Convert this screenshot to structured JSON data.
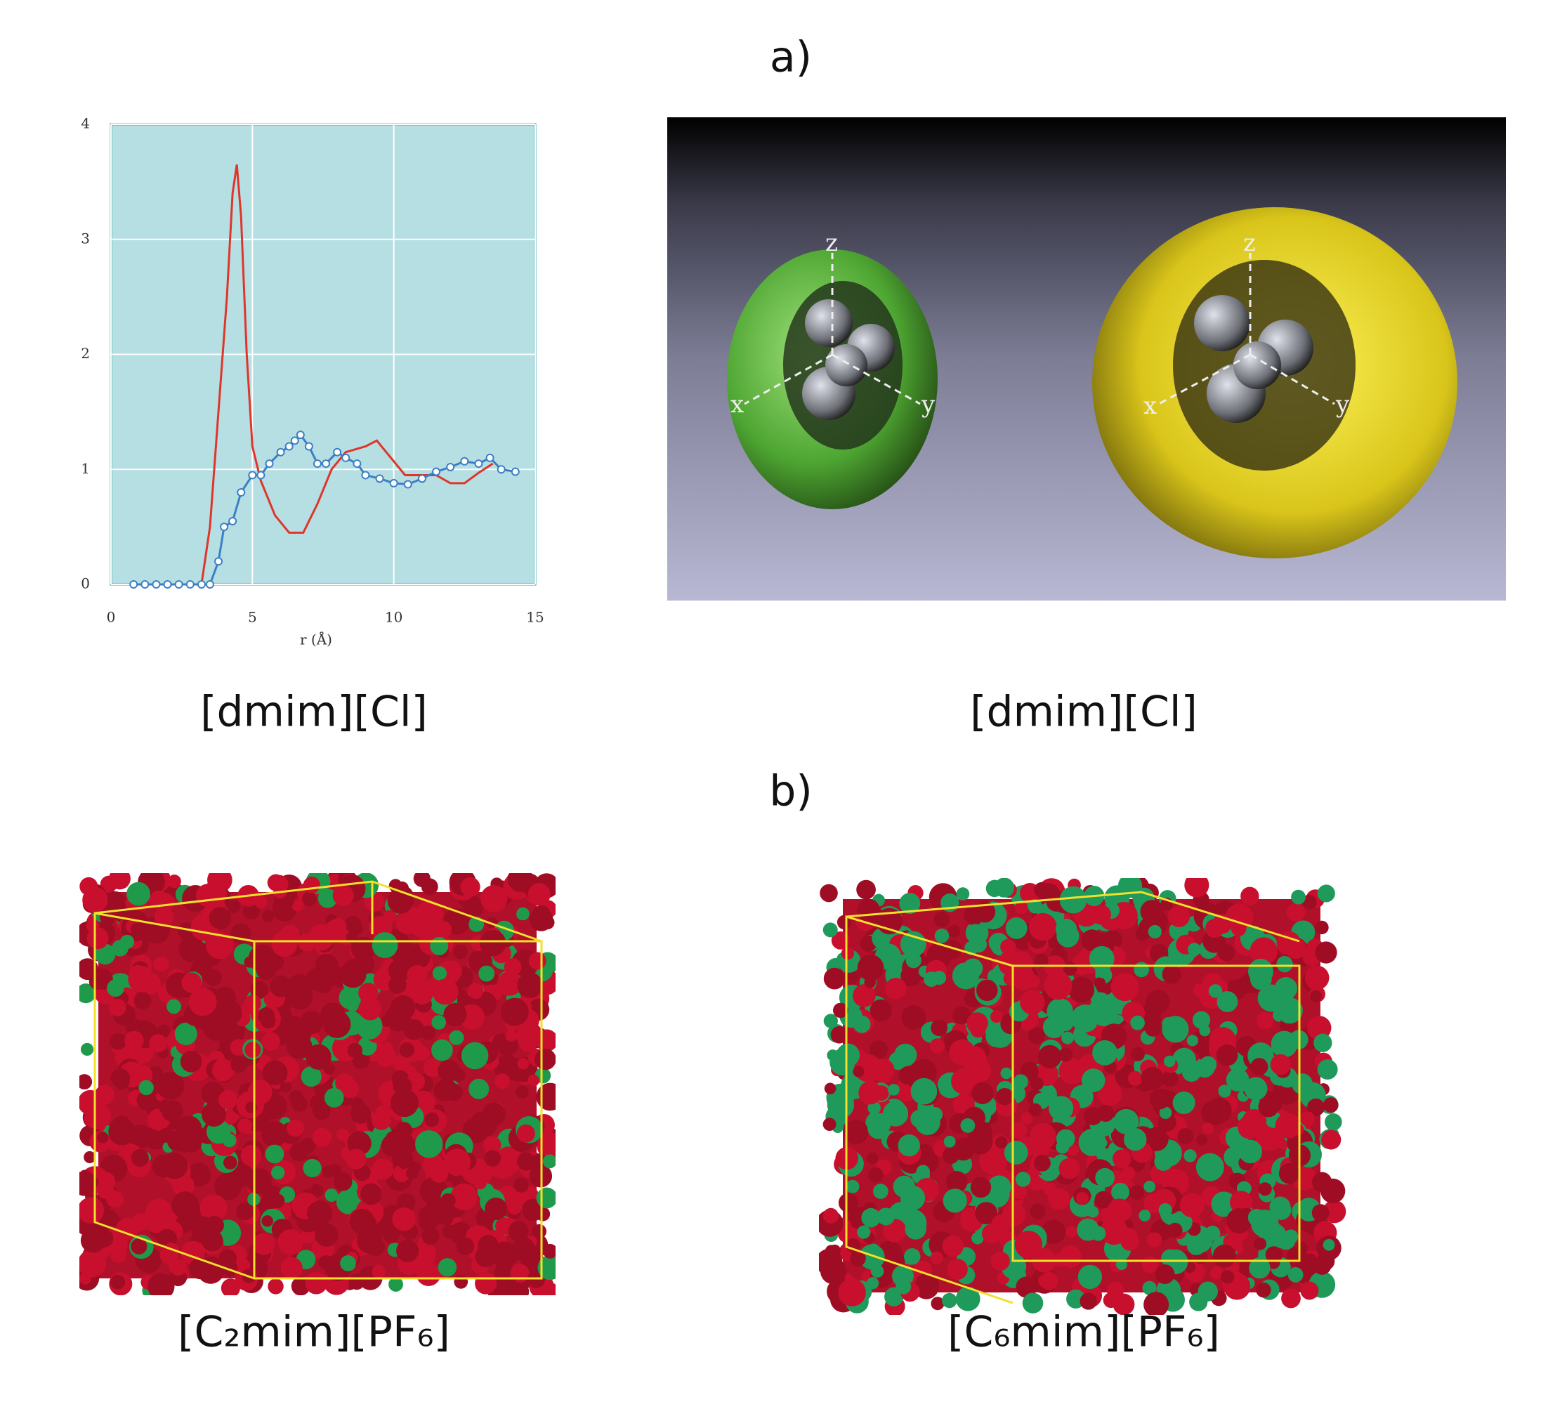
{
  "chart_data": {
    "type": "line",
    "xlabel": "r (Å)",
    "xlim": [
      0,
      15
    ],
    "ylim": [
      0,
      4
    ],
    "xticks": [
      0,
      5,
      10,
      15
    ],
    "yticks": [
      0,
      1,
      2,
      3,
      4
    ],
    "grid": true,
    "series": [
      {
        "color": "#e0352b",
        "marker": "none",
        "x": [
          3.2,
          3.5,
          3.8,
          4.1,
          4.3,
          4.45,
          4.6,
          4.8,
          5.0,
          5.3,
          5.8,
          6.3,
          6.8,
          7.3,
          7.8,
          8.3,
          9.0,
          9.4,
          9.9,
          10.4,
          11.0,
          11.5,
          12.0,
          12.5,
          13.0,
          13.5
        ],
        "values": [
          0,
          0.5,
          1.5,
          2.5,
          3.4,
          3.65,
          3.2,
          2.0,
          1.2,
          0.9,
          0.6,
          0.45,
          0.45,
          0.7,
          1.0,
          1.15,
          1.2,
          1.25,
          1.1,
          0.95,
          0.95,
          0.95,
          0.88,
          0.88,
          0.97,
          1.05
        ]
      },
      {
        "color": "#3b7fc4",
        "marker": "circle",
        "x": [
          0.8,
          1.2,
          1.6,
          2.0,
          2.4,
          2.8,
          3.2,
          3.5,
          3.8,
          4.0,
          4.3,
          4.6,
          5.0,
          5.3,
          5.6,
          6.0,
          6.3,
          6.5,
          6.7,
          7.0,
          7.3,
          7.6,
          8.0,
          8.3,
          8.7,
          9.0,
          9.5,
          10.0,
          10.5,
          11.0,
          11.5,
          12.0,
          12.5,
          13.0,
          13.4,
          13.8,
          14.3
        ],
        "values": [
          0,
          0,
          0,
          0,
          0,
          0,
          0,
          0,
          0.2,
          0.5,
          0.55,
          0.8,
          0.95,
          0.95,
          1.05,
          1.15,
          1.2,
          1.25,
          1.3,
          1.2,
          1.05,
          1.05,
          1.15,
          1.1,
          1.05,
          0.95,
          0.92,
          0.88,
          0.87,
          0.92,
          0.98,
          1.02,
          1.07,
          1.05,
          1.1,
          1.0,
          0.98
        ]
      }
    ]
  },
  "panel_labels": [
    "a)",
    "b)"
  ],
  "captions": [
    "[dmim][Cl]",
    "[dmim][Cl]",
    "[C₂mim][PF₆]",
    "[C₆mim][PF₆]"
  ],
  "axis_letters": [
    "x",
    "y",
    "z",
    "x",
    "y",
    "z"
  ]
}
